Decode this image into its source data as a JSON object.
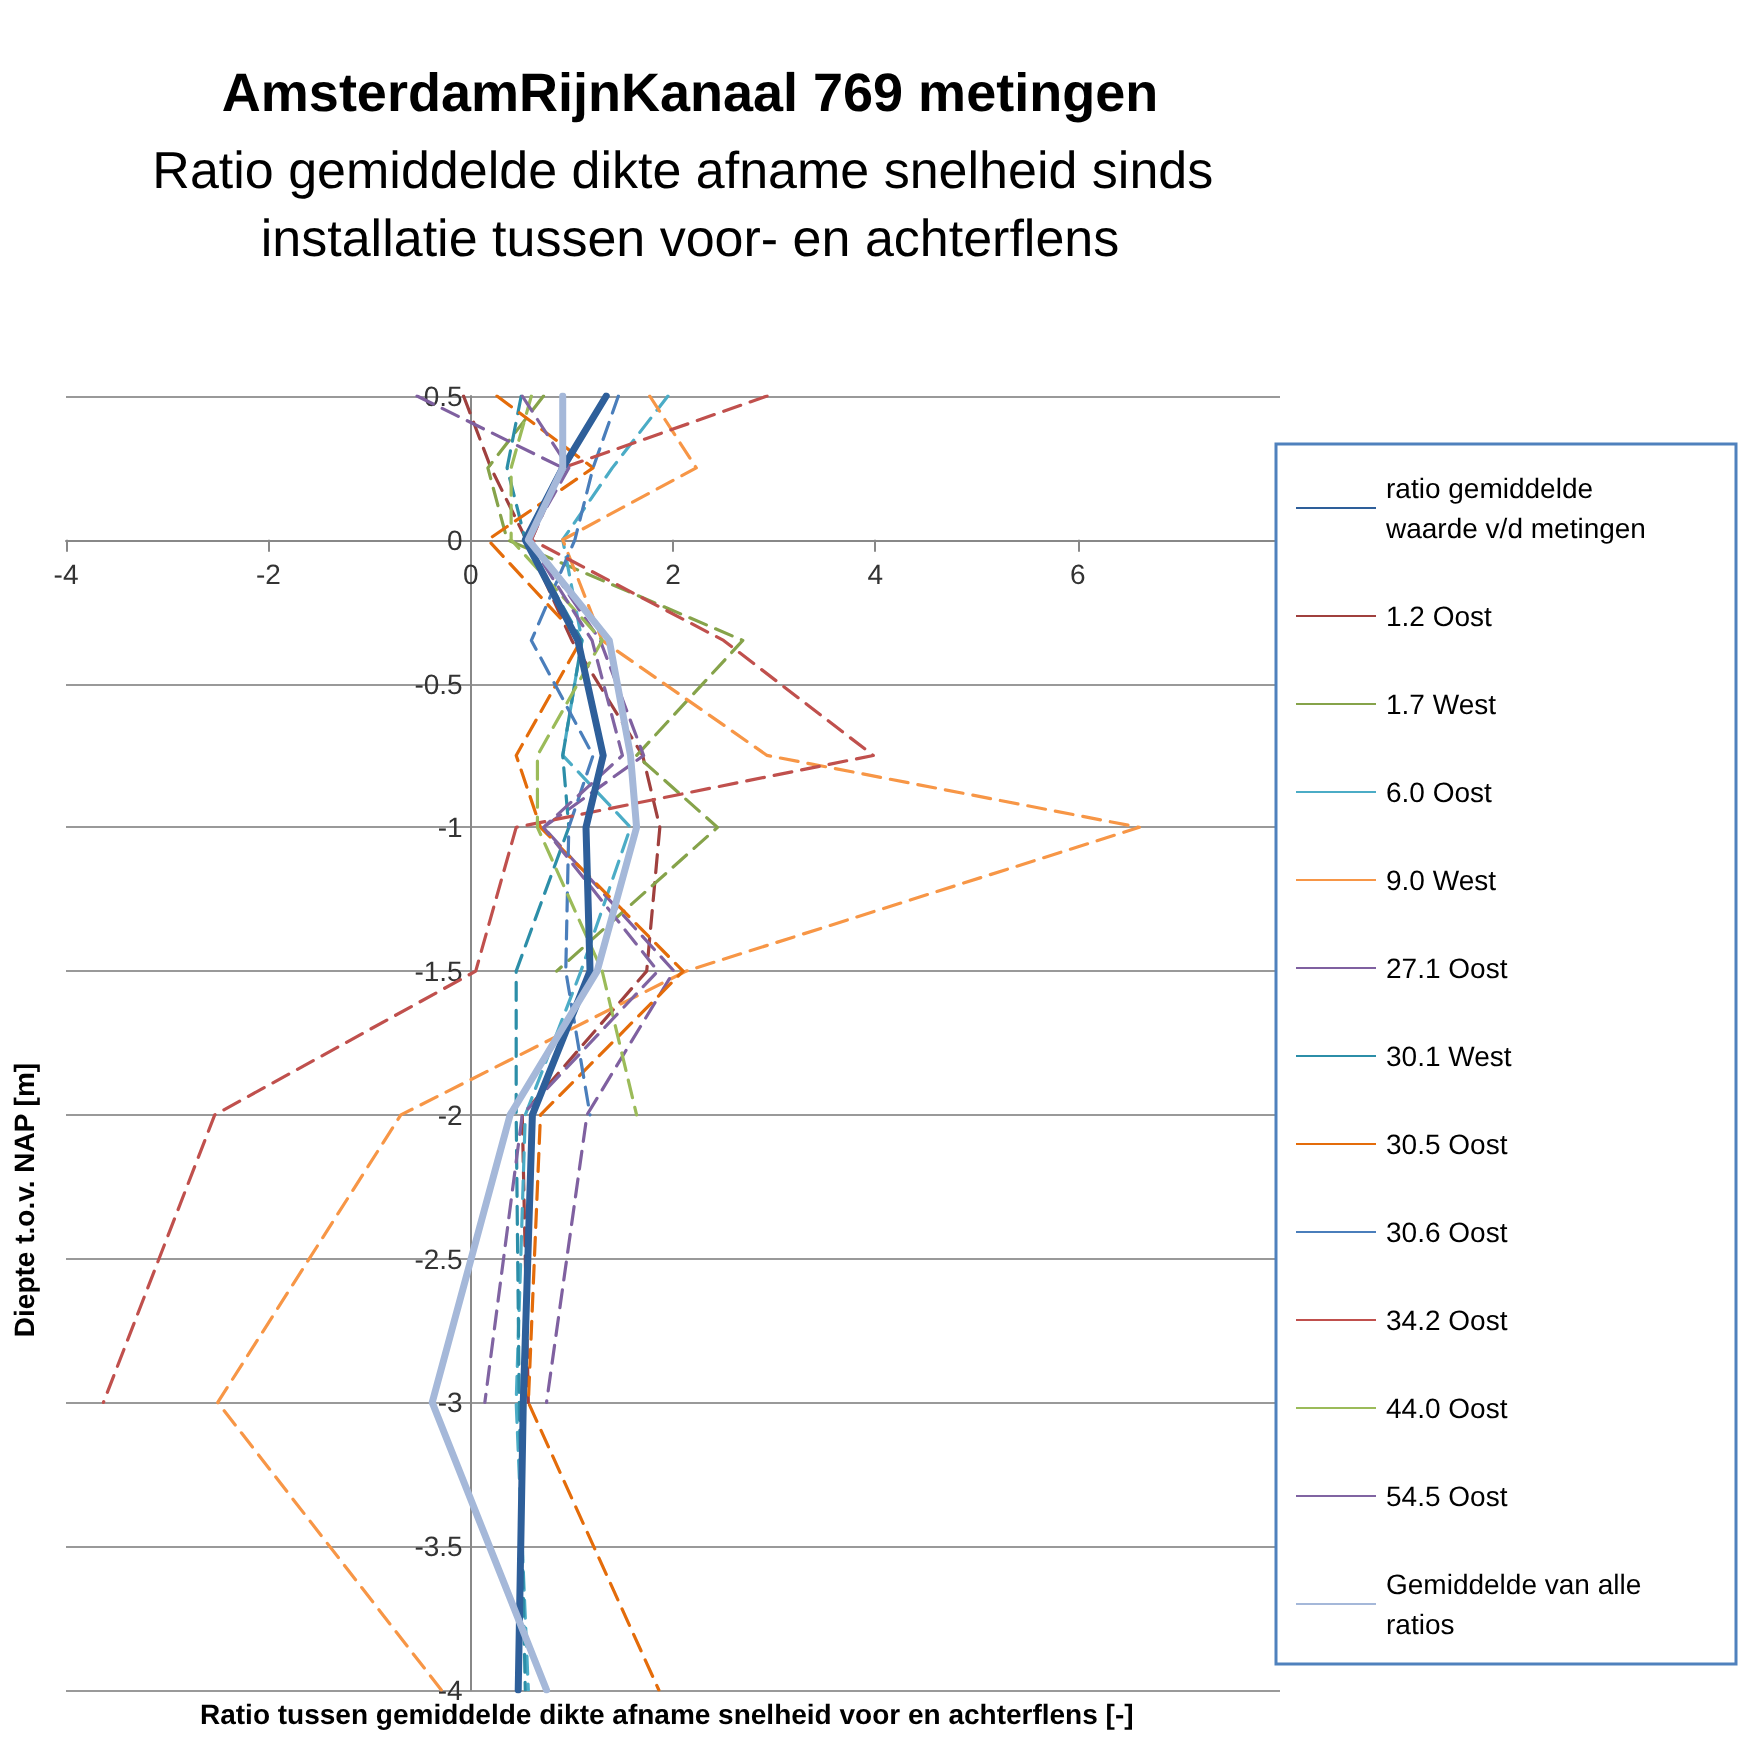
{
  "chart_data": {
    "type": "line",
    "title": "AmsterdamRijnKanaal 769 metingen",
    "subtitle": "Ratio gemiddelde dikte afname snelheid sinds installatie tussen voor- en achterflens",
    "xlabel": "Ratio tussen gemiddelde dikte afname snelheid voor en achterflens [-]",
    "ylabel": "Diepte t.o.v. NAP [m]",
    "xlim": [
      -4,
      8
    ],
    "xticks": [
      -4,
      -2,
      0,
      2,
      4,
      6
    ],
    "ylim": [
      -4,
      0.5
    ],
    "yticks": [
      0.5,
      0,
      -0.5,
      -1,
      -1.5,
      -2,
      -2.5,
      -3,
      -3.5,
      -4
    ],
    "grid": "y",
    "legend": "right",
    "marker": "none",
    "series": [
      {
        "name": "ratio gemiddelde waarde v/d metingen",
        "color": "#2e5f9a",
        "line_style": "solid",
        "x": [
          1.34,
          0.91,
          0.54,
          1.06,
          1.31,
          1.14,
          1.18,
          0.61,
          0.52,
          0.47
        ],
        "values": [
          0.5,
          0.25,
          0,
          -0.35,
          -0.75,
          -1,
          -1.5,
          -2,
          -3,
          -4
        ]
      },
      {
        "name": "1.2 Oost",
        "color": "#a0403e",
        "line_style": "dashed",
        "x": [
          -0.07,
          0.2,
          0.55,
          1.0,
          1.7,
          1.87,
          1.74,
          0.51,
          0.57
        ],
        "values": [
          0.5,
          0.25,
          0,
          -0.35,
          -0.75,
          -1,
          -1.5,
          -2,
          -3
        ]
      },
      {
        "name": "1.7 West",
        "color": "#86a34a",
        "line_style": "dashed",
        "x": [
          0.72,
          0.17,
          0.36,
          2.69,
          1.64,
          2.44,
          0.85
        ],
        "values": [
          0.5,
          0.25,
          0,
          -0.35,
          -0.75,
          -1,
          -1.5
        ]
      },
      {
        "name": "6.0 Oost",
        "color": "#4bacc6",
        "line_style": "dashed",
        "x": [
          1.95,
          1.4,
          0.91,
          1.1,
          0.91,
          1.58,
          1.09,
          0.54,
          0.45,
          0.57
        ],
        "values": [
          0.5,
          0.25,
          0,
          -0.35,
          -0.75,
          -1,
          -1.5,
          -2,
          -3,
          -4
        ]
      },
      {
        "name": "9.0 West",
        "color": "#f79646",
        "line_style": "dashed",
        "x": [
          1.77,
          2.23,
          0.91,
          1.3,
          2.93,
          6.61,
          2.13,
          -0.69,
          -2.5,
          -0.29
        ],
        "values": [
          0.5,
          0.25,
          0,
          -0.35,
          -0.75,
          -1,
          -1.5,
          -2,
          -3,
          -4
        ]
      },
      {
        "name": "27.1 Oost",
        "color": "#7f60a0",
        "line_style": "dashed",
        "x": [
          -0.53,
          0.91,
          0.6,
          1.28,
          1.71,
          0.72,
          2.01,
          1.15,
          0.75
        ],
        "values": [
          0.5,
          0.25,
          0,
          -0.35,
          -0.75,
          -1,
          -1.5,
          -2,
          -3
        ]
      },
      {
        "name": "30.1 West",
        "color": "#2c8ea8",
        "line_style": "dashed",
        "x": [
          0.5,
          0.36,
          0.54,
          1.1,
          0.91,
          0.97,
          0.45,
          0.45,
          0.48,
          0.54
        ],
        "values": [
          0.5,
          0.25,
          0,
          -0.35,
          -0.75,
          -1,
          -1.5,
          -2,
          -3,
          -4
        ]
      },
      {
        "name": "30.5 Oost",
        "color": "#e46c0a",
        "line_style": "dashed",
        "x": [
          0.26,
          1.21,
          0.17,
          1.09,
          0.45,
          0.69,
          2.1,
          0.69,
          0.57,
          1.86
        ],
        "values": [
          0.5,
          0.25,
          0,
          -0.35,
          -0.75,
          -1,
          -1.5,
          -2,
          -3,
          -4
        ]
      },
      {
        "name": "30.6 Oost",
        "color": "#4a7ebb",
        "line_style": "dashed",
        "x": [
          1.46,
          1.21,
          1.03,
          0.6,
          1.21,
          0.97,
          0.94,
          1.18
        ],
        "values": [
          0.5,
          0.25,
          0,
          -0.35,
          -0.75,
          -1,
          -1.5,
          -2
        ]
      },
      {
        "name": "34.2 Oost",
        "color": "#c0504d",
        "line_style": "dashed",
        "x": [
          2.93,
          0.91,
          0.6,
          2.5,
          3.98,
          0.45,
          0.05,
          -2.53,
          -3.63
        ],
        "values": [
          0.5,
          0.25,
          0,
          -0.35,
          -0.75,
          -1,
          -1.5,
          -2,
          -3
        ]
      },
      {
        "name": "44.0 Oost",
        "color": "#9bbb59",
        "line_style": "dashed",
        "x": [
          0.6,
          0.4,
          0.4,
          1.3,
          0.66,
          0.66,
          1.3,
          1.64
        ],
        "values": [
          0.5,
          0.25,
          0,
          -0.35,
          -0.75,
          -1,
          -1.5,
          -2
        ]
      },
      {
        "name": "54.5 Oost",
        "color": "#8064a2",
        "line_style": "dashed",
        "x": [
          0.51,
          0.97,
          0.57,
          1.2,
          1.5,
          0.72,
          1.85,
          0.51,
          0.14
        ],
        "values": [
          0.5,
          0.25,
          0,
          -0.35,
          -0.75,
          -1,
          -1.5,
          -2,
          -3
        ]
      },
      {
        "name": "Gemiddelde van alle ratios",
        "color": "#a5b8d9",
        "line_style": "solid",
        "x": [
          0.91,
          0.91,
          0.57,
          1.37,
          1.58,
          1.64,
          1.25,
          0.39,
          -0.38,
          0.75
        ],
        "values": [
          0.5,
          0.25,
          0,
          -0.35,
          -0.75,
          -1,
          -1.5,
          -2,
          -3,
          -4
        ]
      }
    ]
  }
}
